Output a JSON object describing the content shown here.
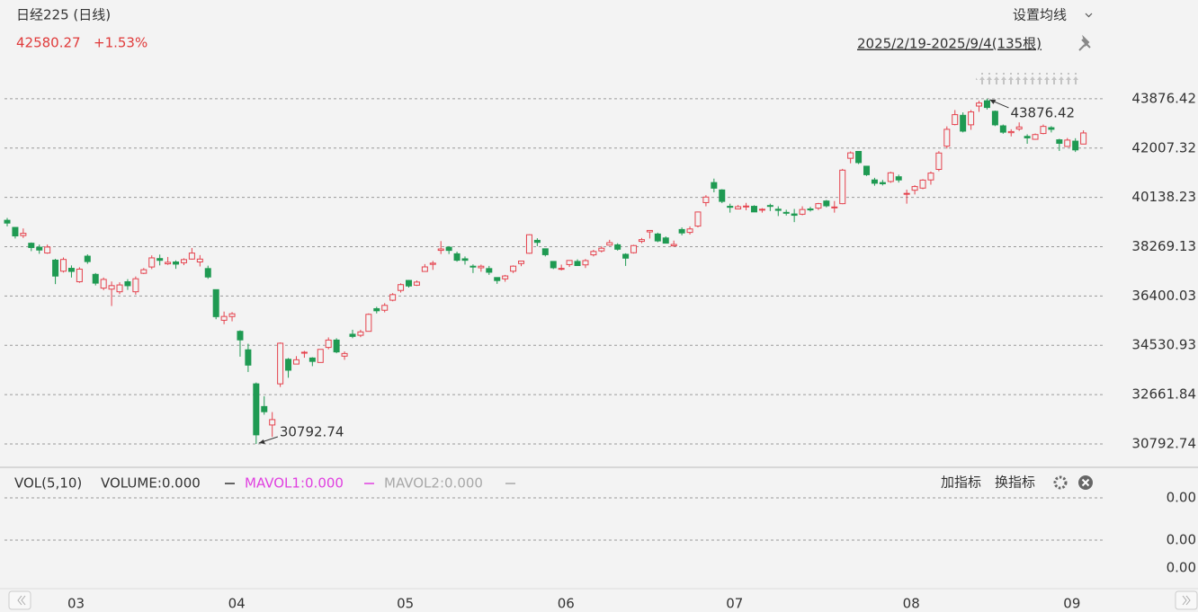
{
  "header": {
    "title": "日经225 (日线)",
    "price": "42580.27",
    "change": "+1.53%",
    "ma_setting": "设置均线",
    "range": "2025/2/19-2025/9/4(135根)"
  },
  "volume_panel": {
    "name": "VOL(5,10)",
    "volume": "VOLUME:0.000",
    "mavol1": "MAVOL1:0.000",
    "mavol2": "MAVOL2:0.000",
    "add_indicator": "加指标",
    "switch_indicator": "换指标",
    "yticks": [
      "0.00",
      "0.00",
      "0.00"
    ]
  },
  "chart_data": {
    "type": "candlestick",
    "up_color": "#e5424d",
    "down_color": "#1f9a52",
    "grid": true,
    "ylim": [
      29940,
      47450
    ],
    "yticks": [
      30792.74,
      32661.84,
      34530.93,
      36400.03,
      38269.13,
      40138.23,
      42007.32,
      43876.42
    ],
    "max_label": "43876.42",
    "min_label": "30792.74",
    "categories": [
      null,
      null,
      null,
      null,
      null,
      null,
      null,
      "03",
      null,
      null,
      null,
      null,
      null,
      null,
      null,
      null,
      null,
      null,
      null,
      null,
      null,
      null,
      null,
      null,
      null,
      null,
      null,
      "04",
      null,
      null,
      null,
      null,
      null,
      null,
      null,
      null,
      null,
      null,
      null,
      null,
      null,
      null,
      null,
      null,
      null,
      null,
      null,
      null,
      "05",
      null,
      null,
      null,
      null,
      null,
      null,
      null,
      null,
      null,
      null,
      null,
      null,
      null,
      null,
      null,
      null,
      null,
      null,
      null,
      "06",
      null,
      null,
      null,
      null,
      null,
      null,
      null,
      null,
      null,
      null,
      null,
      null,
      null,
      null,
      null,
      null,
      null,
      null,
      null,
      null,
      "07",
      null,
      null,
      null,
      null,
      null,
      null,
      null,
      null,
      null,
      null,
      null,
      null,
      null,
      null,
      null,
      null,
      null,
      null,
      null,
      null,
      null,
      "08",
      null,
      null,
      null,
      null,
      null,
      null,
      null,
      null,
      null,
      null,
      null,
      null,
      null,
      null,
      null,
      null,
      null,
      null,
      null,
      "09",
      null,
      null,
      null
    ],
    "candles": [
      [
        39270,
        39360,
        39040,
        39164
      ],
      [
        39000,
        39010,
        38580,
        38678
      ],
      [
        38690,
        38960,
        38600,
        38776
      ],
      [
        38400,
        38430,
        38100,
        38237
      ],
      [
        38250,
        38350,
        38000,
        38142
      ],
      [
        38030,
        38350,
        38000,
        38256
      ],
      [
        37760,
        37810,
        36850,
        37155
      ],
      [
        37340,
        37860,
        37290,
        37785
      ],
      [
        37450,
        37560,
        37100,
        37331
      ],
      [
        36940,
        37490,
        36900,
        37418
      ],
      [
        37910,
        37980,
        37620,
        37704
      ],
      [
        37220,
        37270,
        36800,
        36887
      ],
      [
        36700,
        37100,
        36620,
        37028
      ],
      [
        36660,
        36950,
        36020,
        36793
      ],
      [
        36560,
        36920,
        36470,
        36819
      ],
      [
        36940,
        37040,
        36630,
        36790
      ],
      [
        36560,
        37140,
        36450,
        37053
      ],
      [
        37260,
        37460,
        37230,
        37396
      ],
      [
        37500,
        37940,
        37420,
        37845
      ],
      [
        37820,
        37970,
        37560,
        37751
      ],
      [
        37620,
        37880,
        37580,
        37677
      ],
      [
        37690,
        37750,
        37430,
        37608
      ],
      [
        37660,
        37830,
        37570,
        37780
      ],
      [
        37800,
        38220,
        37780,
        38027
      ],
      [
        37690,
        37950,
        37520,
        37799
      ],
      [
        37440,
        37550,
        37050,
        37120
      ],
      [
        36640,
        36650,
        35520,
        35617
      ],
      [
        35480,
        35810,
        35330,
        35624
      ],
      [
        35620,
        35790,
        35440,
        35725
      ],
      [
        35060,
        35100,
        34100,
        34736
      ],
      [
        34360,
        34590,
        33520,
        33780
      ],
      [
        33070,
        33120,
        30792.74,
        31136
      ],
      [
        32210,
        32600,
        31900,
        32013
      ],
      [
        31510,
        32000,
        31060,
        31714
      ],
      [
        33070,
        34640,
        32950,
        34609
      ],
      [
        34000,
        34050,
        33300,
        33586
      ],
      [
        33820,
        34120,
        33820,
        33982
      ],
      [
        34260,
        34320,
        34060,
        34267
      ],
      [
        34050,
        34080,
        33740,
        33920
      ],
      [
        33880,
        34380,
        33870,
        34377
      ],
      [
        34450,
        34830,
        34380,
        34730
      ],
      [
        34730,
        34800,
        34230,
        34280
      ],
      [
        34120,
        34300,
        33980,
        34220
      ],
      [
        34950,
        35120,
        34800,
        34868
      ],
      [
        34910,
        35120,
        34840,
        35039
      ],
      [
        35060,
        35740,
        35060,
        35705
      ],
      [
        35920,
        35990,
        35740,
        35839
      ],
      [
        35860,
        36130,
        35780,
        36045
      ],
      [
        36240,
        36510,
        36200,
        36452
      ],
      [
        36610,
        36880,
        36530,
        36831
      ],
      [
        36990,
        37010,
        36720,
        36780
      ],
      [
        36810,
        36990,
        36780,
        36928
      ],
      [
        37330,
        37610,
        37330,
        37503
      ],
      [
        37600,
        37730,
        37390,
        37644
      ],
      [
        38130,
        38480,
        37990,
        38183
      ],
      [
        38250,
        38290,
        37990,
        38128
      ],
      [
        38000,
        38080,
        37700,
        37755
      ],
      [
        37810,
        37900,
        37590,
        37753
      ],
      [
        37530,
        37600,
        37270,
        37498
      ],
      [
        37470,
        37590,
        37320,
        37529
      ],
      [
        37440,
        37540,
        37200,
        37299
      ],
      [
        37100,
        37110,
        36860,
        36985
      ],
      [
        37050,
        37200,
        36940,
        37160
      ],
      [
        37340,
        37560,
        37270,
        37531
      ],
      [
        37630,
        37730,
        37530,
        37724
      ],
      [
        38020,
        38740,
        38000,
        38722
      ],
      [
        38510,
        38590,
        38290,
        38432
      ],
      [
        38190,
        38190,
        37900,
        37965
      ],
      [
        37710,
        37720,
        37420,
        37470
      ],
      [
        37440,
        37590,
        37370,
        37446
      ],
      [
        37590,
        37760,
        37500,
        37747
      ],
      [
        37710,
        37790,
        37550,
        37554
      ],
      [
        37580,
        37800,
        37460,
        37741
      ],
      [
        37960,
        38150,
        37900,
        38088
      ],
      [
        38110,
        38290,
        38050,
        38211
      ],
      [
        38330,
        38530,
        38310,
        38421
      ],
      [
        38340,
        38400,
        38120,
        38173
      ],
      [
        37980,
        38020,
        37540,
        37834
      ],
      [
        38040,
        38340,
        38010,
        38311
      ],
      [
        38470,
        38600,
        38400,
        38536
      ],
      [
        38830,
        38890,
        38580,
        38885
      ],
      [
        38750,
        38800,
        38440,
        38488
      ],
      [
        38600,
        38660,
        38400,
        38403
      ],
      [
        38300,
        38500,
        38270,
        38354
      ],
      [
        38920,
        39000,
        38700,
        38790
      ],
      [
        38810,
        39040,
        38730,
        38942
      ],
      [
        39050,
        39600,
        39000,
        39584
      ],
      [
        39940,
        40220,
        39800,
        40150
      ],
      [
        40700,
        40850,
        40330,
        40487
      ],
      [
        40420,
        40450,
        39920,
        39986
      ],
      [
        39800,
        39900,
        39560,
        39762
      ],
      [
        39700,
        39850,
        39690,
        39785
      ],
      [
        39800,
        39930,
        39650,
        39810
      ],
      [
        39800,
        39840,
        39580,
        39587
      ],
      [
        39660,
        39730,
        39560,
        39688
      ],
      [
        39830,
        39900,
        39620,
        39821
      ],
      [
        39690,
        39800,
        39430,
        39646
      ],
      [
        39570,
        39670,
        39450,
        39569
      ],
      [
        39510,
        39700,
        39200,
        39459
      ],
      [
        39500,
        39800,
        39460,
        39678
      ],
      [
        39700,
        39780,
        39600,
        39663
      ],
      [
        39730,
        39930,
        39660,
        39901
      ],
      [
        40000,
        40040,
        39760,
        39819
      ],
      [
        39750,
        40000,
        39560,
        39774
      ],
      [
        39900,
        41220,
        39880,
        41171
      ],
      [
        41620,
        41880,
        41430,
        41826
      ],
      [
        41880,
        41890,
        41400,
        41456
      ],
      [
        41320,
        41330,
        40950,
        40998
      ],
      [
        40800,
        40880,
        40580,
        40674
      ],
      [
        40700,
        40800,
        40590,
        40654
      ],
      [
        40740,
        41110,
        40690,
        41069
      ],
      [
        40920,
        41000,
        40700,
        40799
      ],
      [
        40260,
        40430,
        39900,
        40290
      ],
      [
        40410,
        40600,
        40250,
        40549
      ],
      [
        40490,
        40830,
        40450,
        40794
      ],
      [
        40800,
        41120,
        40620,
        41059
      ],
      [
        41200,
        41890,
        41130,
        41820
      ],
      [
        42080,
        42830,
        41990,
        42718
      ],
      [
        42900,
        43450,
        42870,
        43274
      ],
      [
        43250,
        43360,
        42600,
        42649
      ],
      [
        42890,
        43450,
        42700,
        43378
      ],
      [
        43600,
        43800,
        43380,
        43714
      ],
      [
        43800,
        43876.42,
        43470,
        43546
      ],
      [
        43400,
        43430,
        42840,
        42888
      ],
      [
        42850,
        42900,
        42550,
        42610
      ],
      [
        42590,
        42720,
        42450,
        42633
      ],
      [
        42730,
        42980,
        42660,
        42807
      ],
      [
        42450,
        42530,
        42170,
        42394
      ],
      [
        42340,
        42560,
        42320,
        42520
      ],
      [
        42560,
        42900,
        42530,
        42829
      ],
      [
        42780,
        42840,
        42600,
        42718
      ],
      [
        42320,
        42360,
        41900,
        42188
      ],
      [
        42070,
        42390,
        42050,
        42310
      ],
      [
        42270,
        42380,
        41860,
        41938
      ],
      [
        42160,
        42680,
        42160,
        42580.27
      ]
    ]
  }
}
